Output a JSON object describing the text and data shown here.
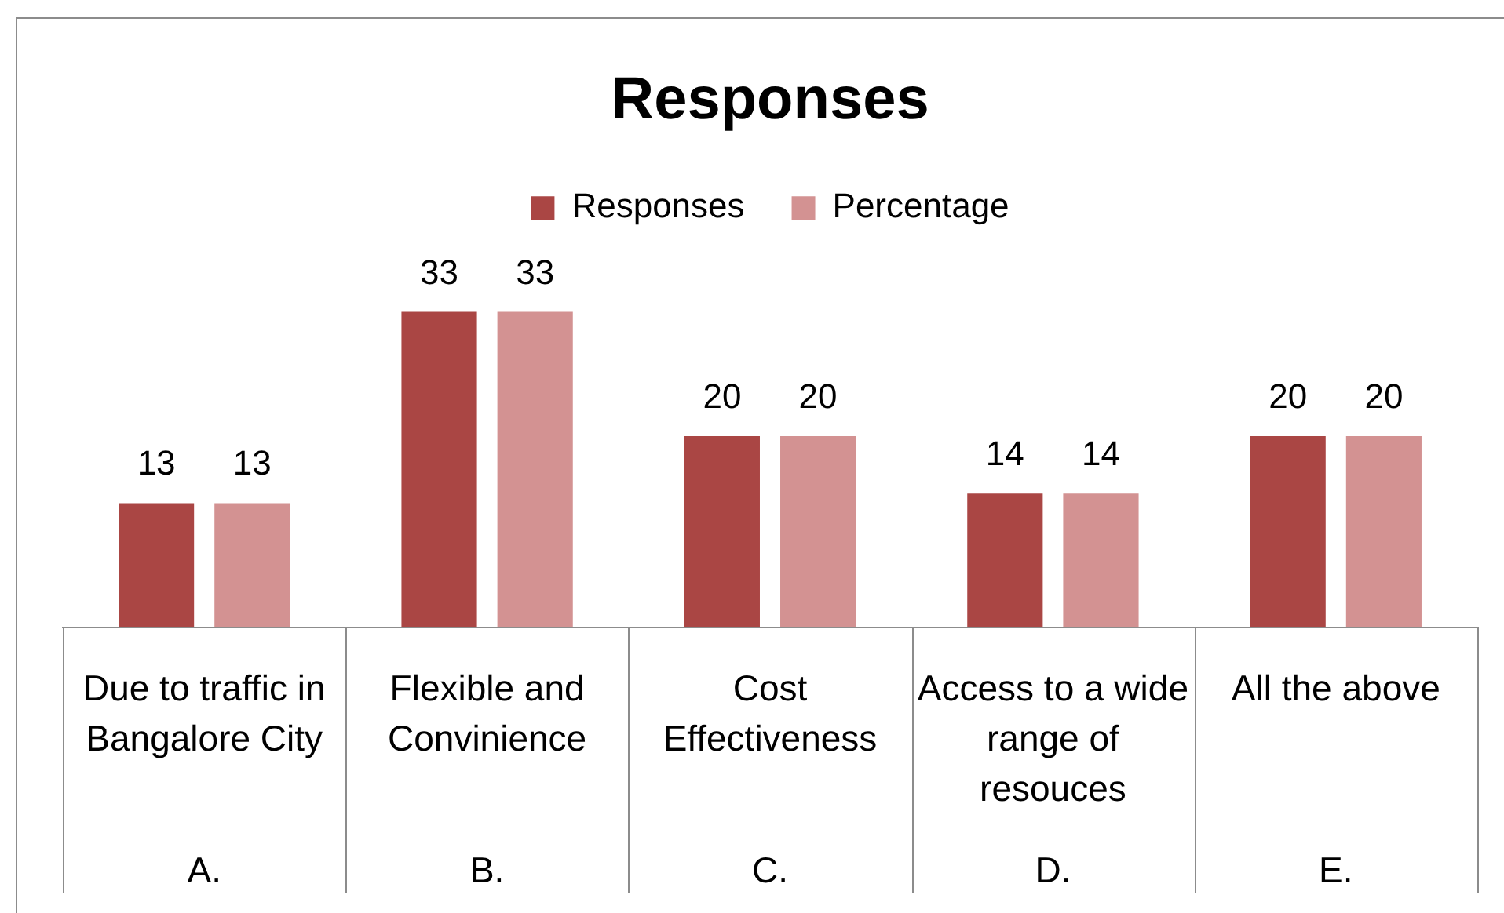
{
  "chart_data": {
    "type": "bar",
    "title": "Responses",
    "categories": [
      "Due to traffic in Bangalore City",
      "Flexible and Convinience",
      "Cost Effectiveness",
      "Access to a wide range of resouces",
      "All the above"
    ],
    "series": [
      {
        "name": "Responses",
        "color": "#aa4644",
        "values": [
          13,
          33,
          20,
          14,
          20
        ]
      },
      {
        "name": "Percentage",
        "color": "#d39292",
        "values": [
          13,
          33,
          20,
          14,
          20
        ]
      }
    ],
    "tick_labels": "x",
    "legend": "top",
    "data_labels": true,
    "annotations": [
      "A.",
      "B.",
      "C.",
      "D.",
      "E."
    ]
  }
}
